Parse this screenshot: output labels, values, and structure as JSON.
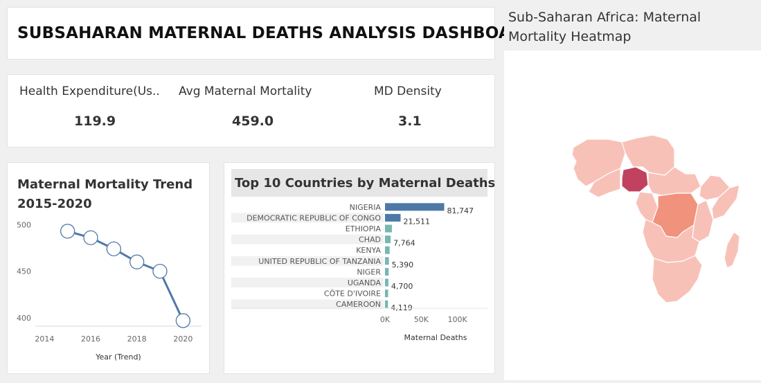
{
  "dashboard": {
    "title": "SUBSAHARAN MATERNAL DEATHS ANALYSIS DASHBOARD"
  },
  "kpis": [
    {
      "label": "Health Expenditure(Us..",
      "value": "119.9"
    },
    {
      "label": "Avg Maternal Mortality",
      "value": "459.0"
    },
    {
      "label": "MD Density",
      "value": "3.1"
    }
  ],
  "colors": {
    "line": "#4e79a7",
    "bar_high": "#4e79a7",
    "bar_low": "#76b7b2",
    "map_nigeria": "#c0425f",
    "map_drc": "#f1927c",
    "map_other": "#f8c1b8"
  },
  "map": {
    "title": "Sub-Saharan Africa: Maternal Mortality Heatmap"
  },
  "chart_data": [
    {
      "type": "line",
      "title": "Maternal Mortality Trend 2015-2020",
      "xlabel": "Year (Trend)",
      "ylabel": "",
      "x": [
        2015,
        2016,
        2017,
        2018,
        2019,
        2020
      ],
      "values": [
        493,
        486,
        474,
        460,
        450,
        397
      ],
      "x_ticks": [
        "2014",
        "2016",
        "2018",
        "2020"
      ],
      "y_ticks": [
        "400",
        "450",
        "500"
      ],
      "xlim": [
        2013.6,
        2020.8
      ],
      "ylim": [
        391,
        507
      ]
    },
    {
      "type": "bar",
      "orientation": "horizontal",
      "title": "Top 10 Countries by Maternal Deaths",
      "xlabel": "Maternal Deaths",
      "categories": [
        "NIGERIA",
        "DEMOCRATIC REPUBLIC OF CONGO",
        "ETHIOPIA",
        "CHAD",
        "KENYA",
        "UNITED REPUBLIC OF TANZANIA",
        "NIGER",
        "UGANDA",
        "CÔTE D'IVOIRE",
        "CAMEROON"
      ],
      "values": [
        81747,
        21511,
        9500,
        7764,
        6400,
        5390,
        5000,
        4700,
        4300,
        4119
      ],
      "value_labels": [
        "81,747",
        "21,511",
        "",
        "7,764",
        "",
        "5,390",
        "",
        "4,700",
        "",
        "4,119"
      ],
      "x_ticks": [
        "0K",
        "50K",
        "100K"
      ],
      "xlim": [
        0,
        130000
      ]
    }
  ]
}
